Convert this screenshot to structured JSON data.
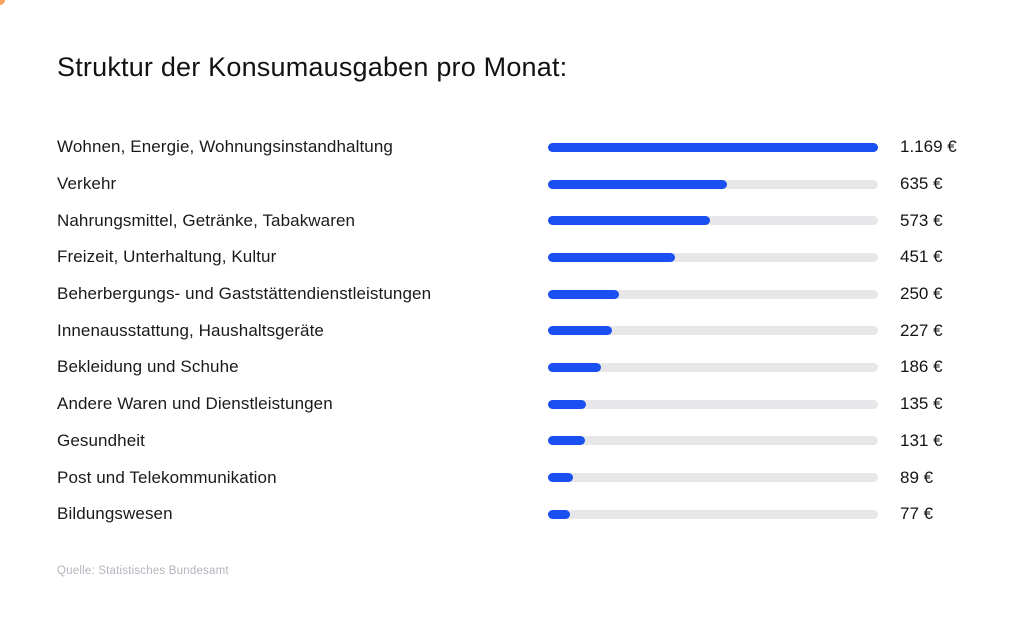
{
  "page": {
    "background": "#ffffff"
  },
  "header": {
    "title": "Struktur der Konsumausgaben pro Monat:"
  },
  "footer": {
    "source": "Quelle: Statistisches Bundesamt"
  },
  "colors": {
    "bar_fill": "#1a4ff2",
    "bar_track": "#e7e7e9",
    "title_text": "#121214",
    "label_text": "#1a1a1c",
    "value_text": "#141416",
    "source_text": "#b4b4bc",
    "corner_artifact": "#f6a05c"
  },
  "chart_data": {
    "type": "bar",
    "orientation": "horizontal",
    "title": "Struktur der Konsumausgaben pro Monat:",
    "unit": "EUR",
    "max_value": 1169,
    "grid": false,
    "legend": false,
    "categories": [
      "Wohnen, Energie, Wohnungsinstandhaltung",
      "Verkehr",
      "Nahrungsmittel, Getränke, Tabakwaren",
      "Freizeit, Unterhaltung, Kultur",
      "Beherbergungs- und Gaststättendienstleistungen",
      "Innenausstattung, Haushaltsgeräte",
      "Bekleidung und Schuhe",
      "Andere Waren und Dienstleistungen",
      "Gesundheit",
      "Post und Telekommunikation",
      "Bildungswesen"
    ],
    "values": [
      1169,
      635,
      573,
      451,
      250,
      227,
      186,
      135,
      131,
      89,
      77
    ],
    "value_labels": [
      "1.169 €",
      "635 €",
      "573 €",
      "451 €",
      "250 €",
      "227 €",
      "186 €",
      "135 €",
      "131 €",
      "89 €",
      "77 €"
    ],
    "source": "Quelle: Statistisches Bundesamt"
  }
}
